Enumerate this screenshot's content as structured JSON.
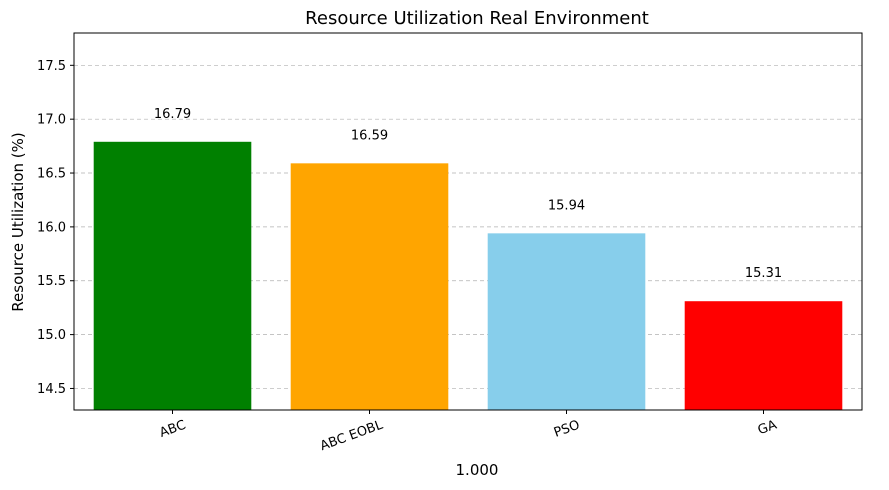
{
  "chart_data": {
    "type": "bar",
    "title": "Resource Utilization Real Environment",
    "xlabel": "1.000",
    "ylabel": "Resource Utilization (%)",
    "categories": [
      "ABC",
      "ABC EOBL",
      "PSO",
      "GA"
    ],
    "values": [
      16.79,
      16.59,
      15.94,
      15.31
    ],
    "value_labels": [
      "16.79",
      "16.59",
      "15.94",
      "15.31"
    ],
    "colors": [
      "#008000",
      "#ffa500",
      "#87ceeb",
      "#ff0000"
    ],
    "ylim": [
      14.3,
      17.8
    ],
    "yticks": [
      14.5,
      15.0,
      15.5,
      16.0,
      16.5,
      17.0,
      17.5
    ],
    "ytick_labels": [
      "14.5",
      "15.0",
      "15.5",
      "16.0",
      "16.5",
      "17.0",
      "17.5"
    ],
    "grid": "y-dashed",
    "xtick_rotation": 20
  }
}
